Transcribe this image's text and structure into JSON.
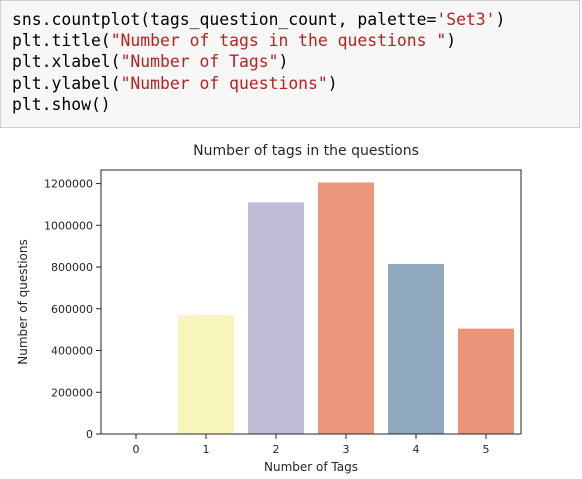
{
  "code_cell": {
    "lines": [
      {
        "code": "sns.countplot(tags_question_count, palette=",
        "str": "'Set3'",
        "tail": ")"
      },
      {
        "code": "plt.title(",
        "str": "\"Number of tags in the questions \"",
        "tail": ")"
      },
      {
        "code": "plt.xlabel(",
        "str": "\"Number of Tags\"",
        "tail": ")"
      },
      {
        "code": "plt.ylabel(",
        "str": "\"Number of questions\"",
        "tail": ")"
      },
      {
        "code": "plt.show()",
        "str": "",
        "tail": ""
      }
    ]
  },
  "colors": {
    "string_token": "#ba2121",
    "cell_background": "#f7f7f7",
    "cell_border": "#cfcfcf"
  },
  "chart_data": {
    "type": "bar",
    "title": "Number of tags in the questions",
    "xlabel": "Number of Tags",
    "ylabel": "Number of questions",
    "categories": [
      "0",
      "1",
      "2",
      "3",
      "4",
      "5"
    ],
    "values": [
      0,
      570000,
      1110000,
      1205000,
      815000,
      505000
    ],
    "colors": [
      "#8dd3c7",
      "#f9f6bb",
      "#c0bcd5",
      "#ea967b",
      "#8fa8be",
      "#ec9479"
    ],
    "yticks": [
      0,
      200000,
      400000,
      600000,
      800000,
      1000000,
      1200000
    ],
    "ytick_labels": [
      "0",
      "200000",
      "400000",
      "600000",
      "800000",
      "1000000",
      "1200000"
    ],
    "ylim": [
      0,
      1265000
    ],
    "grid": false,
    "legend": "none"
  }
}
